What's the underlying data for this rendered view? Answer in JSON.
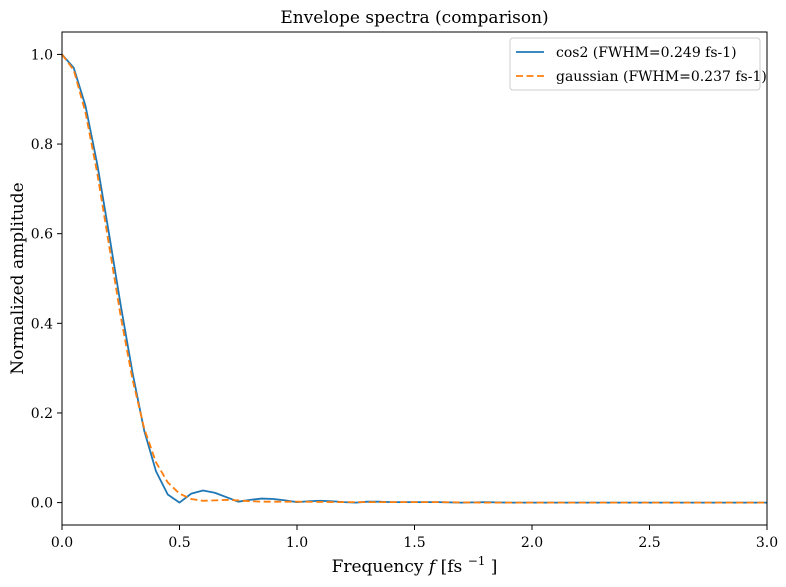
{
  "chart_data": {
    "type": "line",
    "title": "Envelope spectra (comparison)",
    "xlabel": "Frequency",
    "xlabel_symbol": "f",
    "xlabel_unit_open": "[fs",
    "xlabel_unit_exp": "−1",
    "xlabel_unit_close": "]",
    "ylabel": "Normalized amplitude",
    "xlim": [
      0.0,
      3.0
    ],
    "ylim": [
      -0.05,
      1.05
    ],
    "xticks": [
      0.0,
      0.5,
      1.0,
      1.5,
      2.0,
      2.5,
      3.0
    ],
    "xtick_labels": [
      "0.0",
      "0.5",
      "1.0",
      "1.5",
      "2.0",
      "2.5",
      "3.0"
    ],
    "yticks": [
      0.0,
      0.2,
      0.4,
      0.6,
      0.8,
      1.0
    ],
    "ytick_labels": [
      "0.0",
      "0.2",
      "0.4",
      "0.6",
      "0.8",
      "1.0"
    ],
    "grid": false,
    "legend_position": "top-right",
    "series": [
      {
        "name": "cos2 (FWHM=0.249 fs-1)",
        "color": "#1f77b4",
        "style": "solid",
        "x": [
          0.0,
          0.05,
          0.1,
          0.15,
          0.2,
          0.25,
          0.3,
          0.35,
          0.4,
          0.45,
          0.5,
          0.55,
          0.6,
          0.65,
          0.7,
          0.75,
          0.8,
          0.85,
          0.9,
          0.95,
          1.0,
          1.05,
          1.1,
          1.15,
          1.2,
          1.25,
          1.3,
          1.35,
          1.4,
          1.5,
          1.6,
          1.7,
          1.8,
          1.9,
          2.0,
          2.2,
          2.4,
          2.6,
          2.8,
          3.0
        ],
        "y": [
          1.0,
          0.97,
          0.885,
          0.755,
          0.6,
          0.44,
          0.29,
          0.16,
          0.07,
          0.018,
          0.0,
          0.02,
          0.027,
          0.022,
          0.012,
          0.002,
          0.006,
          0.009,
          0.008,
          0.005,
          0.001,
          0.003,
          0.004,
          0.003,
          0.001,
          0.0,
          0.002,
          0.002,
          0.001,
          0.001,
          0.001,
          0.0,
          0.001,
          0.0,
          0.0,
          0.0,
          0.0,
          0.0,
          0.0,
          0.0
        ]
      },
      {
        "name": "gaussian (FWHM=0.237 fs-1)",
        "color": "#ff7f0e",
        "style": "dashed",
        "x": [
          0.0,
          0.05,
          0.1,
          0.15,
          0.2,
          0.25,
          0.3,
          0.35,
          0.4,
          0.45,
          0.5,
          0.55,
          0.6,
          0.65,
          0.7,
          0.75,
          0.8,
          0.85,
          0.9,
          0.95,
          1.0,
          1.2,
          1.4,
          1.6,
          1.8,
          2.0,
          2.5,
          3.0
        ],
        "y": [
          1.0,
          0.965,
          0.87,
          0.735,
          0.575,
          0.415,
          0.275,
          0.165,
          0.09,
          0.045,
          0.02,
          0.008,
          0.004,
          0.005,
          0.006,
          0.005,
          0.003,
          0.002,
          0.002,
          0.002,
          0.002,
          0.001,
          0.001,
          0.001,
          0.0,
          0.0,
          0.0,
          0.0
        ]
      }
    ]
  }
}
